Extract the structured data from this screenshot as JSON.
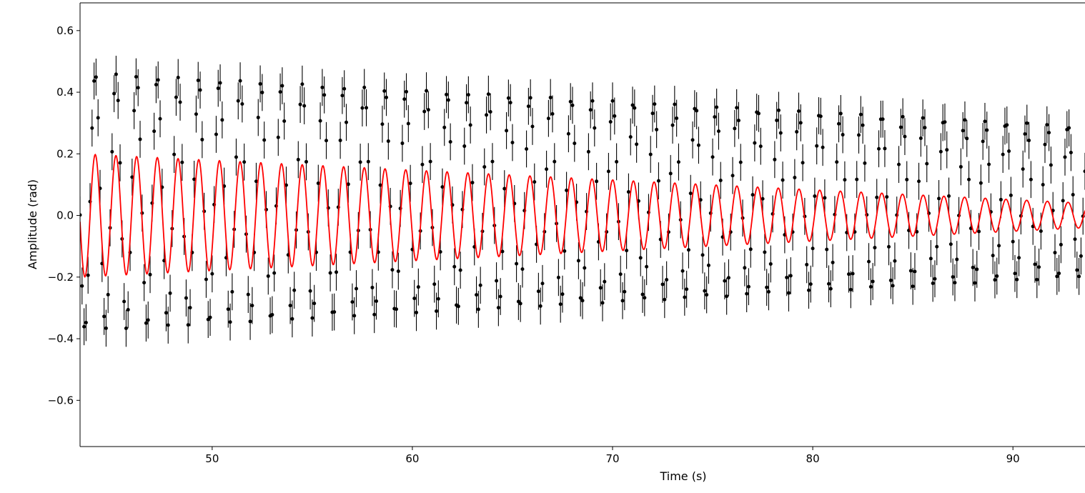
{
  "chart_data": {
    "type": "scatter",
    "title": "",
    "xlabel": "Time (s)",
    "ylabel": "Amplitude (rad)",
    "xlim": [
      43.4,
      93.6
    ],
    "ylim": [
      -0.75,
      0.69
    ],
    "xticks": [
      50,
      60,
      70,
      80,
      90
    ],
    "xtick_labels": [
      "50",
      "60",
      "70",
      "80",
      "90"
    ],
    "yticks": [
      -0.6,
      -0.4,
      -0.2,
      0.0,
      0.2,
      0.4,
      0.6
    ],
    "ytick_labels": [
      "−0.6",
      "−0.4",
      "−0.2",
      "0.0",
      "0.2",
      "0.4",
      "0.6"
    ],
    "grid": false,
    "series": [
      {
        "kind": "measured-with-error-bars",
        "color": "#000000",
        "period_s": 1.034,
        "phase_s": 43.9,
        "amplitude_start": 0.42,
        "amplitude_end": 0.245,
        "offset": 0.045,
        "sample_interval_s": 0.1,
        "error_bar_halfwidth": 0.06
      },
      {
        "kind": "model-curve",
        "color": "#ff0000",
        "period_s": 1.034,
        "phase_s": 43.9,
        "amplitude_start": 0.2,
        "amplitude_end": 0.04,
        "offset": 0.0
      }
    ]
  }
}
